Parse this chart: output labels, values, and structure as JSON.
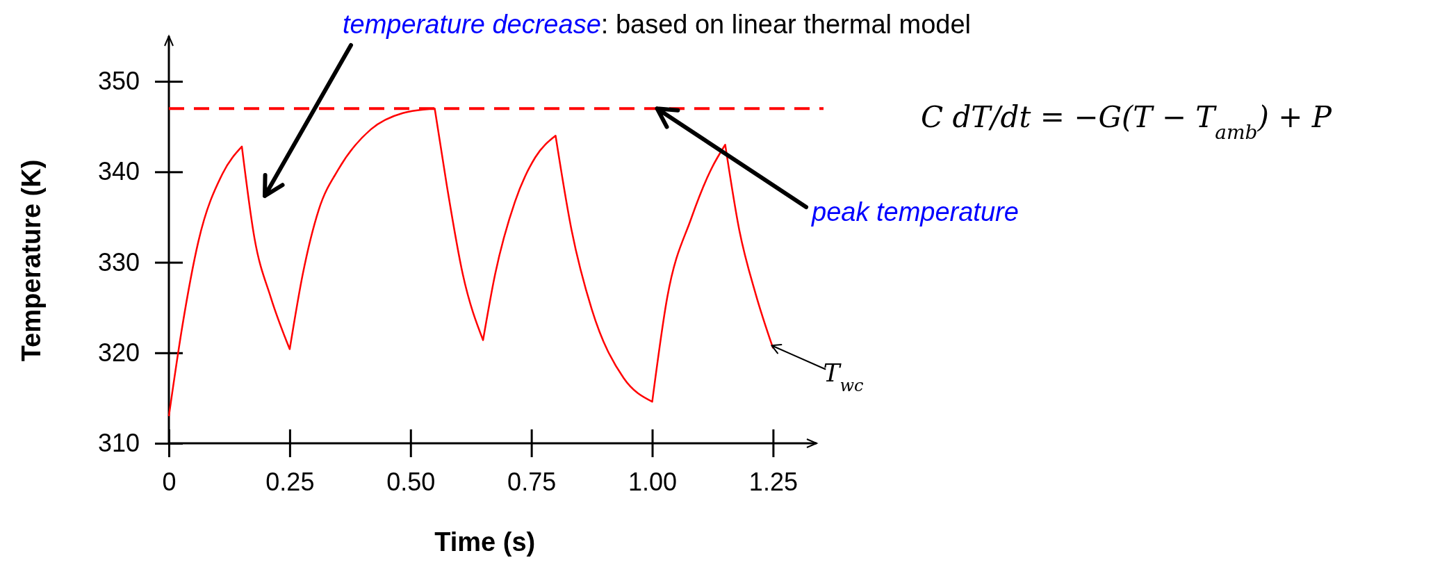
{
  "chart_data": {
    "type": "line",
    "xlabel": "Time (s)",
    "ylabel": "Temperature (K)",
    "xlim": [
      0,
      1.34
    ],
    "ylim": [
      310,
      355
    ],
    "xticks": [
      0,
      {
        "value": 0.25,
        "label": "0.25"
      },
      {
        "value": 0.5,
        "label": "0.50"
      },
      {
        "value": 0.75,
        "label": "0.75"
      },
      {
        "value": 1,
        "label": "1.00"
      },
      {
        "value": 1.25,
        "label": "1.25"
      }
    ],
    "yticks": [
      310,
      320,
      330,
      340,
      350
    ],
    "grid": false,
    "legend": false,
    "marker": "none",
    "line_style": "solid",
    "series": [
      {
        "name": "T$_{wc}$",
        "color": "#ff0000",
        "x": [
          0,
          0.028,
          0.061,
          0.111,
          0.151,
          0.177,
          0.211,
          0.25,
          0.277,
          0.31,
          0.351,
          0.418,
          0.484,
          0.55,
          0.575,
          0.608,
          0.65,
          0.675,
          0.716,
          0.758,
          0.8,
          0.833,
          0.875,
          0.941,
          1.0,
          1.031,
          1.081,
          1.122,
          1.151,
          1.18,
          1.214,
          1.25
        ],
        "values": [
          313,
          323,
          332.3,
          339.8,
          342.8,
          332.7,
          326.1,
          320.4,
          328.7,
          335.8,
          340.3,
          344.7,
          346.5,
          347,
          338.5,
          328.7,
          321.4,
          328.7,
          336.7,
          341.6,
          344,
          333.6,
          324.8,
          317.2,
          314.6,
          326.1,
          334.9,
          340.3,
          343,
          333.6,
          326.5,
          320.5
        ]
      }
    ],
    "ref_lines": [
      {
        "axis": "y",
        "value": 347,
        "color": "#ff0000",
        "line_style": "dashed"
      }
    ],
    "annotations": [
      "temperature decrease",
      ": based on linear thermal model",
      {
        "text": "peak temperature",
        "x": 1.01,
        "y": 347
      },
      "C dT/dt = −G(T − T$_{amb}$) + P"
    ]
  }
}
